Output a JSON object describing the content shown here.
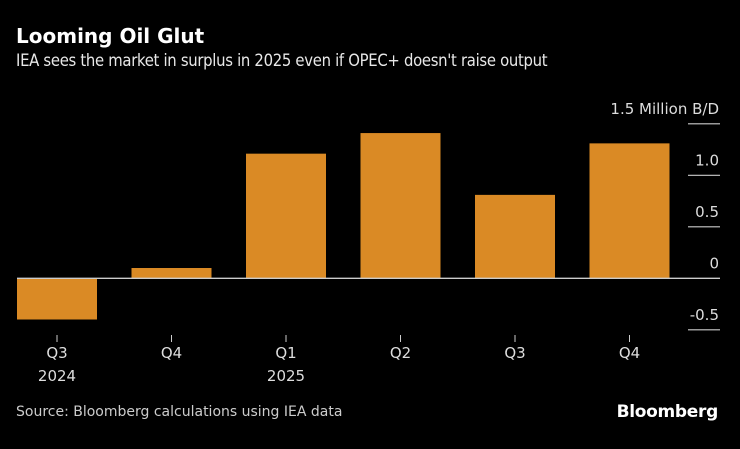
{
  "header": {
    "title": "Looming Oil Glut",
    "subtitle": "IEA sees the market in surplus in 2025 even if OPEC+ doesn't raise output"
  },
  "footer": {
    "source": "Source: Bloomberg calculations using IEA data",
    "logo": "Bloomberg"
  },
  "colors": {
    "bar": "#DA8A25",
    "background": "#000000",
    "zero_line": "#cccccc"
  },
  "chart_data": {
    "type": "bar",
    "title": "Looming Oil Glut",
    "subtitle": "IEA sees the market in surplus in 2025 even if OPEC+ doesn't raise output",
    "categories": [
      "Q3 2024",
      "Q4 2024",
      "Q1 2025",
      "Q2 2025",
      "Q3 2025",
      "Q4 2025"
    ],
    "x_tick_labels": [
      [
        "Q3",
        "2024"
      ],
      [
        "Q4",
        ""
      ],
      [
        "Q1",
        "2025"
      ],
      [
        "Q2",
        ""
      ],
      [
        "Q3",
        ""
      ],
      [
        "Q4",
        ""
      ]
    ],
    "values": [
      -0.4,
      0.1,
      1.21,
      1.41,
      0.81,
      1.31
    ],
    "ylabel": "Million B/D",
    "ylim": [
      -0.5,
      1.5
    ],
    "y_ticks": [
      1.5,
      1.0,
      0.5,
      0,
      -0.5
    ],
    "y_tick_labels": [
      "1.5 Million B/D",
      "1.0",
      "0.5",
      "0",
      "-0.5"
    ],
    "y_axis_side": "right",
    "grid": false
  }
}
